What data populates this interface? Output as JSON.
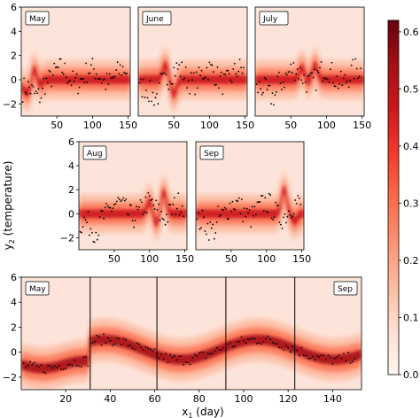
{
  "chart_data": {
    "type": "heatmap",
    "colorbar": {
      "ticks": [
        "0.0",
        "0.1",
        "0.2",
        "0.3",
        "0.4",
        "0.5",
        "0.6"
      ],
      "range": [
        0,
        0.62
      ],
      "colormap": "Reds"
    },
    "ylabel": "y",
    "ylabel_sub": "2",
    "ylabel_rest": " (temperature)",
    "xlabel": "x",
    "xlabel_sub": "1",
    "xlabel_rest": " (day)",
    "panels": [
      {
        "month": "May",
        "xlim": [
          0,
          153
        ],
        "ylim": [
          -3,
          6
        ],
        "xticks": [
          "50",
          "100",
          "150"
        ],
        "xtick_values": [
          50,
          100,
          150
        ],
        "yticks": [
          "−2",
          "0",
          "2",
          "4",
          "6"
        ],
        "ytick_values": [
          -2,
          0,
          2,
          4,
          6
        ],
        "fit_end": 31,
        "peaks": [
          {
            "x": 18,
            "y": 1.8
          }
        ]
      },
      {
        "month": "June",
        "xlim": [
          0,
          153
        ],
        "ylim": [
          -3,
          6
        ],
        "xticks": [
          "50",
          "100",
          "150"
        ],
        "xtick_values": [
          50,
          100,
          150
        ],
        "peaks": [
          {
            "x": 38,
            "y": 1.2
          },
          {
            "x": 50,
            "y": -1.2
          }
        ]
      },
      {
        "month": "July",
        "xlim": [
          0,
          153
        ],
        "ylim": [
          -3,
          6
        ],
        "xticks": [
          "50",
          "100",
          "150"
        ],
        "xtick_values": [
          50,
          100,
          150
        ],
        "peaks": [
          {
            "x": 66,
            "y": 1.0
          },
          {
            "x": 74,
            "y": -0.2
          },
          {
            "x": 84,
            "y": 1.2
          }
        ]
      },
      {
        "month": "Aug",
        "xlim": [
          0,
          153
        ],
        "ylim": [
          -3,
          6
        ],
        "xticks": [
          "50",
          "100",
          "150"
        ],
        "xtick_values": [
          50,
          100,
          150
        ],
        "yticks": [
          "−2",
          "0",
          "2",
          "4",
          "6"
        ],
        "ytick_values": [
          -2,
          0,
          2,
          4,
          6
        ],
        "peaks": [
          {
            "x": 100,
            "y": 1.0
          },
          {
            "x": 110,
            "y": -0.8
          },
          {
            "x": 120,
            "y": 1.8
          }
        ]
      },
      {
        "month": "Sep",
        "xlim": [
          0,
          153
        ],
        "ylim": [
          -3,
          6
        ],
        "xticks": [
          "50",
          "100",
          "150"
        ],
        "xtick_values": [
          50,
          100,
          150
        ],
        "peaks": [
          {
            "x": 125,
            "y": 2.0
          },
          {
            "x": 140,
            "y": -0.6
          }
        ]
      }
    ],
    "bottom": {
      "labels": [
        "May",
        "Sep"
      ],
      "xlim": [
        0,
        153
      ],
      "ylim": [
        -3,
        6
      ],
      "xticks": [
        "20",
        "40",
        "60",
        "80",
        "100",
        "120",
        "140"
      ],
      "xtick_values": [
        20,
        40,
        60,
        80,
        100,
        120,
        140
      ],
      "yticks": [
        "−2",
        "0",
        "2",
        "4",
        "6"
      ],
      "ytick_values": [
        -2,
        0,
        2,
        4,
        6
      ],
      "month_boundaries": [
        31,
        61,
        92,
        123
      ]
    }
  }
}
